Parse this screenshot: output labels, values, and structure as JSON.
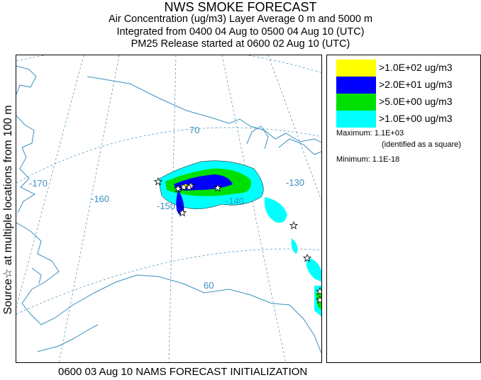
{
  "title": {
    "line1": "NWS SMOKE FORECAST",
    "line2": "Air Concentration (ug/m3) Layer Average    0 m and  5000 m",
    "line3": "Integrated from 0400 04 Aug to 0500 04 Aug 10 (UTC)",
    "line4": "PM25 Release started at 0600 02 Aug 10 (UTC)"
  },
  "side_label": "Source☆  at multiple locations     from  100 m",
  "map": {
    "grid_labels": {
      "lon_170": "-170",
      "lon_160": "-160",
      "lon_150": "-150",
      "lon_140": "-140",
      "lon_130": "-130",
      "lat_70": "70",
      "lat_60": "60"
    }
  },
  "legend": {
    "items": [
      {
        "label": ">1.0E+02 ug/m3",
        "color": "#ffff00"
      },
      {
        "label": ">2.0E+01 ug/m3",
        "color": "#0000ff"
      },
      {
        "label": ">5.0E+00 ug/m3",
        "color": "#00e000"
      },
      {
        "label": ">1.0E+00 ug/m3",
        "color": "#00ffff"
      }
    ],
    "maximum": "Maximum: 1.1E+03",
    "maximum_note": "(identified as a square)",
    "minimum": "Minimum: 1.1E-18"
  },
  "footer": "0600 03 Aug 10 NAMS FORECAST INITIALIZATION"
}
